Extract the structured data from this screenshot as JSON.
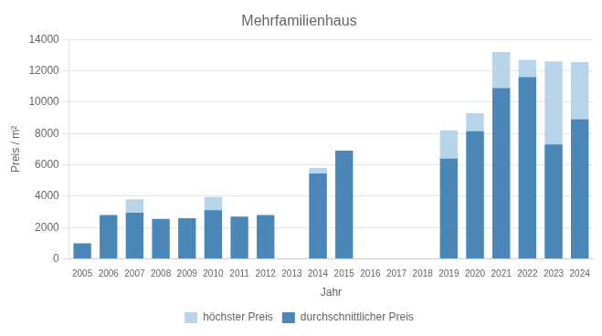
{
  "chart_data": {
    "type": "bar",
    "title": "Mehrfamilienhaus",
    "xlabel": "Jahr",
    "ylabel": "Preis / m²",
    "categories": [
      "2005",
      "2006",
      "2007",
      "2008",
      "2009",
      "2010",
      "2011",
      "2012",
      "2013",
      "2014",
      "2015",
      "2016",
      "2017",
      "2018",
      "2019",
      "2020",
      "2021",
      "2022",
      "2023",
      "2024"
    ],
    "series": [
      {
        "name": "höchster Preis",
        "color": "#b8d4e8",
        "values": [
          0,
          0,
          3800,
          0,
          0,
          3950,
          0,
          0,
          0,
          5800,
          0,
          0,
          0,
          0,
          8200,
          9300,
          13200,
          12700,
          12600,
          12550
        ]
      },
      {
        "name": "durchschnittlicher Preis",
        "color": "#4a86b8",
        "values": [
          1000,
          2800,
          2950,
          2550,
          2600,
          3100,
          2700,
          2800,
          0,
          5450,
          6900,
          0,
          0,
          0,
          6400,
          8150,
          10900,
          11600,
          7300,
          8900
        ]
      }
    ],
    "ylim": [
      0,
      14000
    ],
    "yticks": [
      0,
      2000,
      4000,
      6000,
      8000,
      10000,
      12000,
      14000
    ],
    "grid": true,
    "legend": "bottom"
  }
}
